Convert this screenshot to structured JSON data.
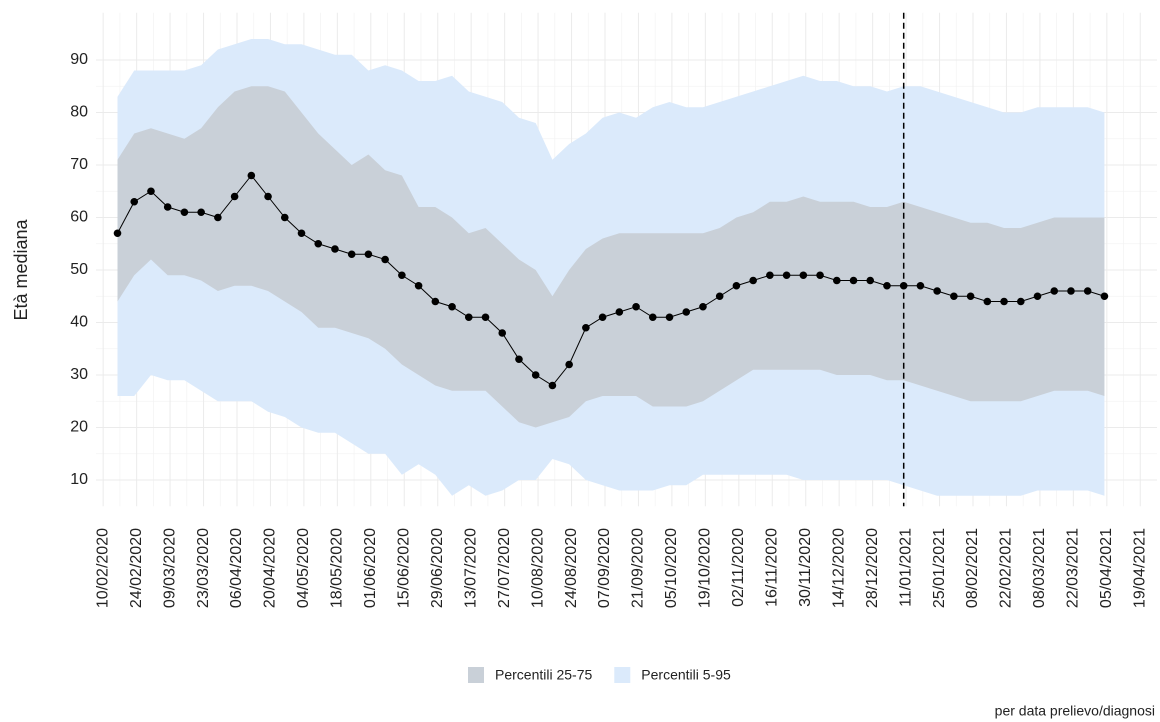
{
  "chart_data": {
    "type": "line",
    "y_label": "Età mediana",
    "caption": "per data prelievo/diagnosi",
    "x": [
      "16/02/2020",
      "23/02/2020",
      "01/03/2020",
      "08/03/2020",
      "15/03/2020",
      "22/03/2020",
      "29/03/2020",
      "05/04/2020",
      "12/04/2020",
      "19/04/2020",
      "26/04/2020",
      "03/05/2020",
      "10/05/2020",
      "17/05/2020",
      "24/05/2020",
      "31/05/2020",
      "07/06/2020",
      "14/06/2020",
      "21/06/2020",
      "28/06/2020",
      "05/07/2020",
      "12/07/2020",
      "19/07/2020",
      "26/07/2020",
      "02/08/2020",
      "09/08/2020",
      "16/08/2020",
      "23/08/2020",
      "30/08/2020",
      "06/09/2020",
      "13/09/2020",
      "20/09/2020",
      "27/09/2020",
      "04/10/2020",
      "11/10/2020",
      "18/10/2020",
      "25/10/2020",
      "01/11/2020",
      "08/11/2020",
      "15/11/2020",
      "22/11/2020",
      "29/11/2020",
      "06/12/2020",
      "13/12/2020",
      "20/12/2020",
      "27/12/2020",
      "03/01/2021",
      "10/01/2021",
      "17/01/2021",
      "24/01/2021",
      "31/01/2021",
      "07/02/2021",
      "14/02/2021",
      "21/02/2021",
      "28/02/2021",
      "07/03/2021",
      "14/03/2021",
      "21/03/2021",
      "28/03/2021",
      "04/04/2021"
    ],
    "series": [
      {
        "color": "#000000",
        "values": [
          57,
          63,
          65,
          62,
          61,
          61,
          60,
          64,
          68,
          64,
          60,
          57,
          55,
          54,
          53,
          53,
          52,
          49,
          47,
          44,
          43,
          41,
          41,
          38,
          33,
          30,
          28,
          32,
          39,
          41,
          42,
          43,
          41,
          41,
          42,
          43,
          45,
          47,
          48,
          49,
          49,
          49,
          49,
          48,
          48,
          48,
          47,
          47,
          47,
          46,
          45,
          45,
          44,
          44,
          44,
          45,
          46,
          46,
          46,
          45
        ]
      }
    ],
    "bands": [
      {
        "name": "Percentili 25-75",
        "color": "#c9d0d8",
        "lower": [
          44,
          49,
          52,
          49,
          49,
          48,
          46,
          47,
          47,
          46,
          44,
          42,
          39,
          39,
          38,
          37,
          35,
          32,
          30,
          28,
          27,
          27,
          27,
          24,
          21,
          20,
          21,
          22,
          25,
          26,
          26,
          26,
          24,
          24,
          24,
          25,
          27,
          29,
          31,
          31,
          31,
          31,
          31,
          30,
          30,
          30,
          29,
          29,
          28,
          27,
          26,
          25,
          25,
          25,
          25,
          26,
          27,
          27,
          27,
          26
        ],
        "upper": [
          71,
          76,
          77,
          76,
          75,
          77,
          81,
          84,
          85,
          85,
          84,
          80,
          76,
          73,
          70,
          72,
          69,
          68,
          62,
          62,
          60,
          57,
          58,
          55,
          52,
          50,
          45,
          50,
          54,
          56,
          57,
          57,
          57,
          57,
          57,
          57,
          58,
          60,
          61,
          63,
          63,
          64,
          63,
          63,
          63,
          62,
          62,
          63,
          62,
          61,
          60,
          59,
          59,
          58,
          58,
          59,
          60,
          60,
          60,
          60
        ]
      },
      {
        "name": "Percentili 5-95",
        "color": "#dbeafb",
        "lower": [
          26,
          26,
          30,
          29,
          29,
          27,
          25,
          25,
          25,
          23,
          22,
          20,
          19,
          19,
          17,
          15,
          15,
          11,
          13,
          11,
          7,
          9,
          7,
          8,
          10,
          10,
          14,
          13,
          10,
          9,
          8,
          8,
          8,
          9,
          9,
          11,
          11,
          11,
          11,
          11,
          11,
          10,
          10,
          10,
          10,
          10,
          10,
          9,
          8,
          7,
          7,
          7,
          7,
          7,
          7,
          8,
          8,
          8,
          8,
          7
        ],
        "upper": [
          83,
          88,
          88,
          88,
          88,
          89,
          92,
          93,
          94,
          94,
          93,
          93,
          92,
          91,
          91,
          88,
          89,
          88,
          86,
          86,
          87,
          84,
          83,
          82,
          79,
          78,
          71,
          74,
          76,
          79,
          80,
          79,
          81,
          82,
          81,
          81,
          82,
          83,
          84,
          85,
          86,
          87,
          86,
          86,
          85,
          85,
          84,
          85,
          85,
          84,
          83,
          82,
          81,
          80,
          80,
          81,
          81,
          81,
          81,
          80
        ]
      }
    ],
    "vline": "10/01/2021",
    "xlim": [
      "07/02/2020",
      "26/04/2021"
    ],
    "xticks": [
      "10/02/2020",
      "24/02/2020",
      "09/03/2020",
      "23/03/2020",
      "06/04/2020",
      "20/04/2020",
      "04/05/2020",
      "18/05/2020",
      "01/06/2020",
      "15/06/2020",
      "29/06/2020",
      "13/07/2020",
      "27/07/2020",
      "10/08/2020",
      "24/08/2020",
      "07/09/2020",
      "21/09/2020",
      "05/10/2020",
      "19/10/2020",
      "02/11/2020",
      "16/11/2020",
      "30/11/2020",
      "14/12/2020",
      "28/12/2020",
      "11/01/2021",
      "25/01/2021",
      "08/02/2021",
      "22/02/2021",
      "08/03/2021",
      "22/03/2021",
      "05/04/2021",
      "19/04/2021"
    ],
    "ylim": [
      5,
      99
    ],
    "yticks": [
      10,
      20,
      30,
      40,
      50,
      60,
      70,
      80,
      90
    ],
    "grid": true
  }
}
